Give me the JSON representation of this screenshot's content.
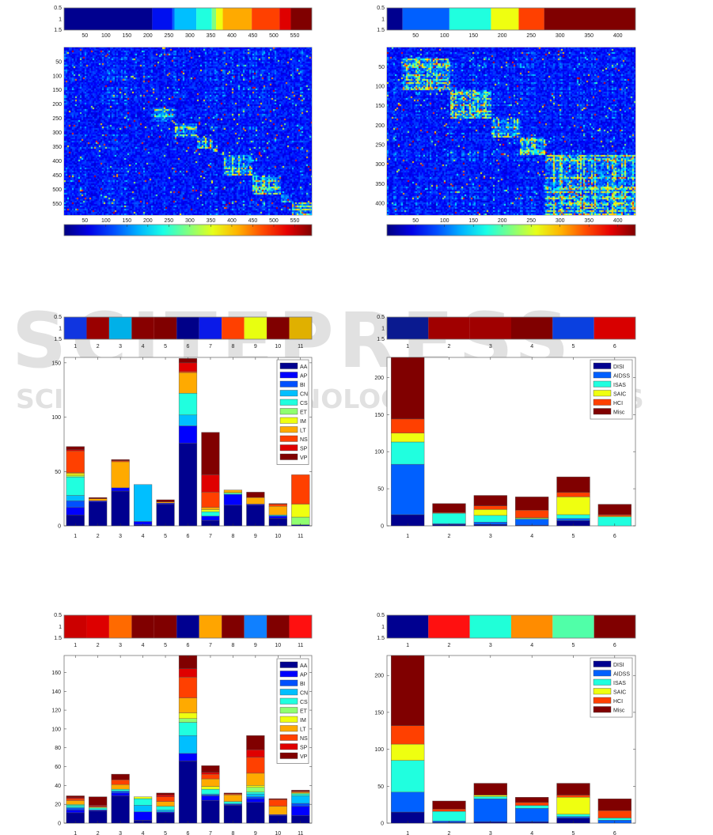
{
  "watermark": {
    "logo": "SCITEPRESS",
    "tagline": "SCIENCE AND TECHNOLOGY PUBLICATIONS"
  },
  "chart_data": [
    {
      "type": "heatmap",
      "label_strip": {
        "yticks": [
          "0.5",
          "1",
          "1.5"
        ],
        "xticks": [
          50,
          100,
          150,
          200,
          250,
          300,
          350,
          400,
          450,
          500,
          550
        ],
        "xlim": [
          0.5,
          590.5
        ],
        "segments": [
          {
            "from": 0,
            "to": 210,
            "color": "#00008f"
          },
          {
            "from": 210,
            "to": 258,
            "color": "#0010f0"
          },
          {
            "from": 258,
            "to": 263,
            "color": "#0060ff"
          },
          {
            "from": 263,
            "to": 315,
            "color": "#00bfff"
          },
          {
            "from": 315,
            "to": 352,
            "color": "#20ffdf"
          },
          {
            "from": 352,
            "to": 362,
            "color": "#80ff80"
          },
          {
            "from": 362,
            "to": 378,
            "color": "#efff10"
          },
          {
            "from": 378,
            "to": 447,
            "color": "#ffaa00"
          },
          {
            "from": 447,
            "to": 513,
            "color": "#ff4000"
          },
          {
            "from": 513,
            "to": 540,
            "color": "#df0000"
          },
          {
            "from": 540,
            "to": 590,
            "color": "#800000"
          }
        ]
      },
      "matrix": {
        "size": 590,
        "xticks": [
          50,
          100,
          150,
          200,
          250,
          300,
          350,
          400,
          450,
          500,
          550
        ],
        "yticks": [
          50,
          100,
          150,
          200,
          250,
          300,
          350,
          400,
          450,
          500,
          550
        ],
        "colormap": "jet"
      },
      "colorbar": {
        "ticks": [
          50,
          100,
          150,
          200,
          250,
          300,
          350,
          400,
          450,
          500,
          550
        ],
        "range": [
          1,
          590
        ],
        "colormap": "jet"
      }
    },
    {
      "type": "heatmap",
      "label_strip": {
        "yticks": [
          "0.5",
          "1",
          "1.5"
        ],
        "xticks": [
          50,
          100,
          150,
          200,
          250,
          300,
          350,
          400
        ],
        "xlim": [
          0.5,
          430.5
        ],
        "segments": [
          {
            "from": 0,
            "to": 27,
            "color": "#00008f"
          },
          {
            "from": 27,
            "to": 108,
            "color": "#0060ff"
          },
          {
            "from": 108,
            "to": 180,
            "color": "#20ffdf"
          },
          {
            "from": 180,
            "to": 228,
            "color": "#efff10"
          },
          {
            "from": 228,
            "to": 272,
            "color": "#ff4000"
          },
          {
            "from": 272,
            "to": 430,
            "color": "#800000"
          }
        ]
      },
      "matrix": {
        "size": 430,
        "xticks": [
          50,
          100,
          150,
          200,
          250,
          300,
          350,
          400
        ],
        "yticks": [
          50,
          100,
          150,
          200,
          250,
          300,
          350,
          400
        ],
        "colormap": "jet"
      },
      "colorbar": {
        "ticks": [
          50,
          100,
          150,
          200,
          250,
          300,
          350,
          400
        ],
        "range": [
          1,
          430
        ],
        "colormap": "jet"
      }
    },
    {
      "type": "bar",
      "stacked": true,
      "label_strip": {
        "yticks": [
          "0.5",
          "1",
          "1.5"
        ],
        "xticks": [
          "1",
          "2",
          "3",
          "4",
          "5",
          "6",
          "7",
          "8",
          "9",
          "10",
          "11"
        ],
        "colors": [
          "#1035e0",
          "#990000",
          "#00b0e8",
          "#880000",
          "#800000",
          "#000088",
          "#0a1ae8",
          "#ff4000",
          "#e8ff10",
          "#800000",
          "#e0b000"
        ]
      },
      "categories": [
        "1",
        "2",
        "3",
        "4",
        "5",
        "6",
        "7",
        "8",
        "9",
        "10",
        "11"
      ],
      "ylim": [
        0,
        155
      ],
      "yticks": [
        0,
        50,
        100,
        150
      ],
      "legend": "top-right",
      "series": [
        {
          "name": "AA",
          "color": "#00008f",
          "values": [
            10,
            22,
            32,
            1,
            20,
            76,
            5,
            19,
            19,
            7,
            1
          ]
        },
        {
          "name": "AP",
          "color": "#0000ff",
          "values": [
            7,
            1,
            3,
            3,
            1,
            16,
            4,
            10,
            1,
            2,
            0
          ]
        },
        {
          "name": "BI",
          "color": "#0050ff",
          "values": [
            6,
            0,
            0,
            0,
            0,
            0,
            0,
            0,
            0,
            0,
            0
          ]
        },
        {
          "name": "CN",
          "color": "#00bfff",
          "values": [
            5,
            0,
            0,
            34,
            0,
            10,
            0,
            0,
            0,
            1,
            0
          ]
        },
        {
          "name": "CS",
          "color": "#20ffdf",
          "values": [
            17,
            0,
            0,
            0,
            0,
            20,
            4,
            1,
            0,
            0,
            0
          ]
        },
        {
          "name": "ET",
          "color": "#8fff70",
          "values": [
            1,
            0,
            0,
            0,
            0,
            0,
            0,
            0,
            0,
            0,
            7
          ]
        },
        {
          "name": "IM",
          "color": "#efff10",
          "values": [
            2,
            0,
            0,
            0,
            0,
            0,
            2,
            1,
            0,
            0,
            12
          ]
        },
        {
          "name": "LT",
          "color": "#ffaa00",
          "values": [
            1,
            2,
            24,
            0,
            1,
            19,
            2,
            2,
            6,
            8,
            0
          ]
        },
        {
          "name": "NS",
          "color": "#ff4000",
          "values": [
            20,
            0,
            1,
            0,
            0,
            1,
            14,
            0,
            0,
            2,
            27
          ]
        },
        {
          "name": "SP",
          "color": "#df0000",
          "values": [
            1,
            0,
            0,
            0,
            0,
            8,
            16,
            0,
            0,
            0,
            0
          ]
        },
        {
          "name": "VP",
          "color": "#800000",
          "values": [
            3,
            1,
            1,
            0,
            2,
            4,
            39,
            0,
            5,
            0.5,
            0
          ]
        }
      ]
    },
    {
      "type": "bar",
      "stacked": true,
      "label_strip": {
        "yticks": [
          "0.5",
          "1",
          "1.5"
        ],
        "xticks": [
          "1",
          "2",
          "3",
          "4",
          "5",
          "6"
        ],
        "colors": [
          "#0a1a90",
          "#a00000",
          "#a00000",
          "#800000",
          "#0a40e0",
          "#d80000"
        ]
      },
      "categories": [
        "1",
        "2",
        "3",
        "4",
        "5",
        "6"
      ],
      "ylim": [
        0,
        227
      ],
      "yticks": [
        0,
        50,
        100,
        150,
        200
      ],
      "legend": "top-right",
      "series": [
        {
          "name": "DISI",
          "color": "#00008f",
          "values": [
            15,
            2,
            2,
            1,
            7,
            0
          ]
        },
        {
          "name": "AIDSS",
          "color": "#0060ff",
          "values": [
            68,
            1,
            3,
            8,
            3,
            0
          ]
        },
        {
          "name": "ISAS",
          "color": "#20ffdf",
          "values": [
            30,
            14,
            9,
            1,
            5,
            12
          ]
        },
        {
          "name": "SAIC",
          "color": "#efff10",
          "values": [
            12,
            0,
            8,
            1,
            24,
            1
          ]
        },
        {
          "name": "HCI",
          "color": "#ff4000",
          "values": [
            19,
            1,
            5,
            10,
            6,
            2
          ]
        },
        {
          "name": "Misc",
          "color": "#800000",
          "values": [
            83,
            12,
            14,
            18,
            21,
            14
          ]
        }
      ]
    },
    {
      "type": "bar",
      "stacked": true,
      "label_strip": {
        "yticks": [
          "0.5",
          "1",
          "1.5"
        ],
        "xticks": [
          "1",
          "2",
          "3",
          "4",
          "5",
          "6",
          "7",
          "8",
          "9",
          "10",
          "11"
        ],
        "colors": [
          "#cc0000",
          "#dd0000",
          "#ff6a00",
          "#800000",
          "#800000",
          "#000090",
          "#ffa500",
          "#800000",
          "#1080ff",
          "#800000",
          "#ff1010"
        ]
      },
      "categories": [
        "1",
        "2",
        "3",
        "4",
        "5",
        "6",
        "7",
        "8",
        "9",
        "10",
        "11"
      ],
      "ylim": [
        0,
        178
      ],
      "yticks": [
        0,
        20,
        40,
        60,
        80,
        100,
        120,
        140,
        160
      ],
      "legend": "top-right",
      "series": [
        {
          "name": "AA",
          "color": "#00008f",
          "values": [
            11,
            13,
            29,
            3,
            11,
            66,
            24,
            19,
            22,
            8,
            8
          ]
        },
        {
          "name": "AP",
          "color": "#0000ff",
          "values": [
            3,
            1,
            3,
            9,
            1,
            8,
            5,
            1,
            4,
            1,
            10
          ]
        },
        {
          "name": "BI",
          "color": "#0050ff",
          "values": [
            2,
            0,
            2,
            0,
            0,
            0,
            1,
            0,
            2,
            0,
            3
          ]
        },
        {
          "name": "CN",
          "color": "#00bfff",
          "values": [
            1,
            0,
            0,
            7,
            2,
            19,
            1,
            1,
            3,
            0,
            8
          ]
        },
        {
          "name": "CS",
          "color": "#20ffdf",
          "values": [
            2,
            2,
            2,
            7,
            4,
            14,
            5,
            2,
            2,
            0,
            2
          ]
        },
        {
          "name": "ET",
          "color": "#8fff70",
          "values": [
            1,
            1,
            0,
            0,
            0,
            4,
            0,
            0,
            5,
            0,
            1
          ]
        },
        {
          "name": "IM",
          "color": "#efff10",
          "values": [
            0,
            0,
            0,
            2,
            0,
            6,
            3,
            0,
            2,
            0,
            0
          ]
        },
        {
          "name": "LT",
          "color": "#ffaa00",
          "values": [
            4,
            0,
            5,
            0,
            5,
            16,
            8,
            7,
            13,
            9,
            1
          ]
        },
        {
          "name": "NS",
          "color": "#ff4000",
          "values": [
            2,
            1,
            5,
            0,
            5,
            22,
            5,
            1,
            17,
            7,
            1
          ]
        },
        {
          "name": "SP",
          "color": "#df0000",
          "values": [
            1,
            1,
            0,
            0,
            2,
            9,
            2,
            0,
            8,
            0,
            0
          ]
        },
        {
          "name": "VP",
          "color": "#800000",
          "values": [
            2,
            9,
            6,
            0,
            2,
            14,
            7,
            1,
            15,
            1,
            1
          ]
        }
      ]
    },
    {
      "type": "bar",
      "stacked": true,
      "label_strip": {
        "yticks": [
          "0.5",
          "1",
          "1.5"
        ],
        "xticks": [
          "1",
          "2",
          "3",
          "4",
          "5",
          "6"
        ],
        "colors": [
          "#000090",
          "#ff1010",
          "#20ffd8",
          "#ff8c00",
          "#50ffa8",
          "#800000"
        ]
      },
      "categories": [
        "1",
        "2",
        "3",
        "4",
        "5",
        "6"
      ],
      "ylim": [
        0,
        227
      ],
      "yticks": [
        0,
        50,
        100,
        150,
        200
      ],
      "legend": "top-right",
      "series": [
        {
          "name": "DISI",
          "color": "#00008f",
          "values": [
            15,
            1,
            2,
            2,
            7,
            0
          ]
        },
        {
          "name": "AIDSS",
          "color": "#0060ff",
          "values": [
            27,
            2,
            31,
            18,
            2,
            4
          ]
        },
        {
          "name": "ISAS",
          "color": "#20ffdf",
          "values": [
            43,
            13,
            3,
            4,
            3,
            3
          ]
        },
        {
          "name": "SAIC",
          "color": "#efff10",
          "values": [
            22,
            0,
            2,
            0,
            23,
            0
          ]
        },
        {
          "name": "HCI",
          "color": "#ff4000",
          "values": [
            25,
            3,
            0,
            4,
            3,
            10
          ]
        },
        {
          "name": "Misc",
          "color": "#800000",
          "values": [
            95,
            11,
            16,
            7,
            16,
            16
          ]
        }
      ]
    }
  ]
}
